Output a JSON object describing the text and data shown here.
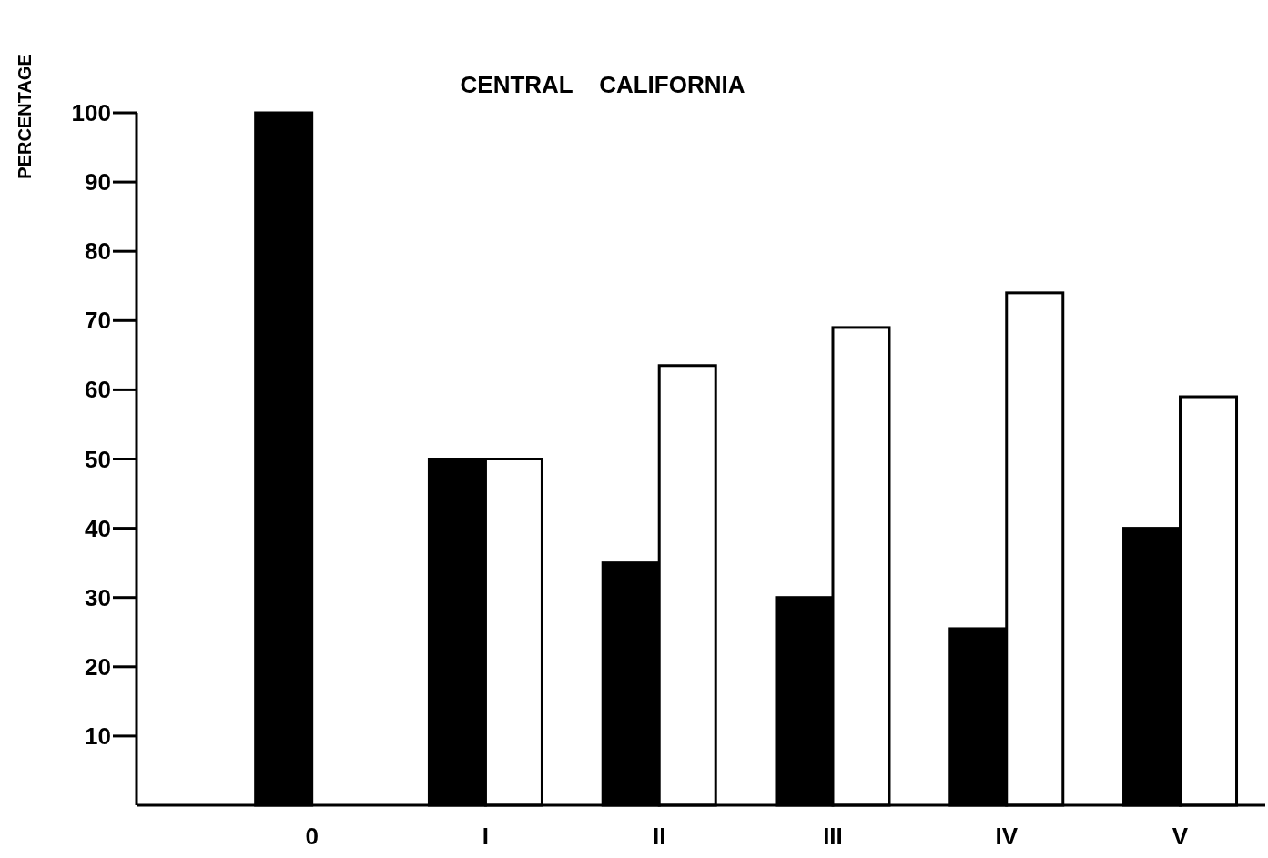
{
  "chart_data": {
    "type": "bar",
    "title": "CENTRAL    CALIFORNIA",
    "ylabel": "PERCENTAGE",
    "categories": [
      "0",
      "I",
      "II",
      "III",
      "IV",
      "V"
    ],
    "series": [
      {
        "color": "#000000",
        "values": [
          100,
          50,
          35,
          30,
          25.5,
          40
        ]
      },
      {
        "color": "#ffffff",
        "values": [
          null,
          50,
          63.5,
          69,
          74,
          59
        ]
      }
    ],
    "ylim": [
      0,
      100
    ],
    "yticks": [
      10,
      20,
      30,
      40,
      50,
      60,
      70,
      80,
      90,
      100
    ],
    "grid": false
  }
}
